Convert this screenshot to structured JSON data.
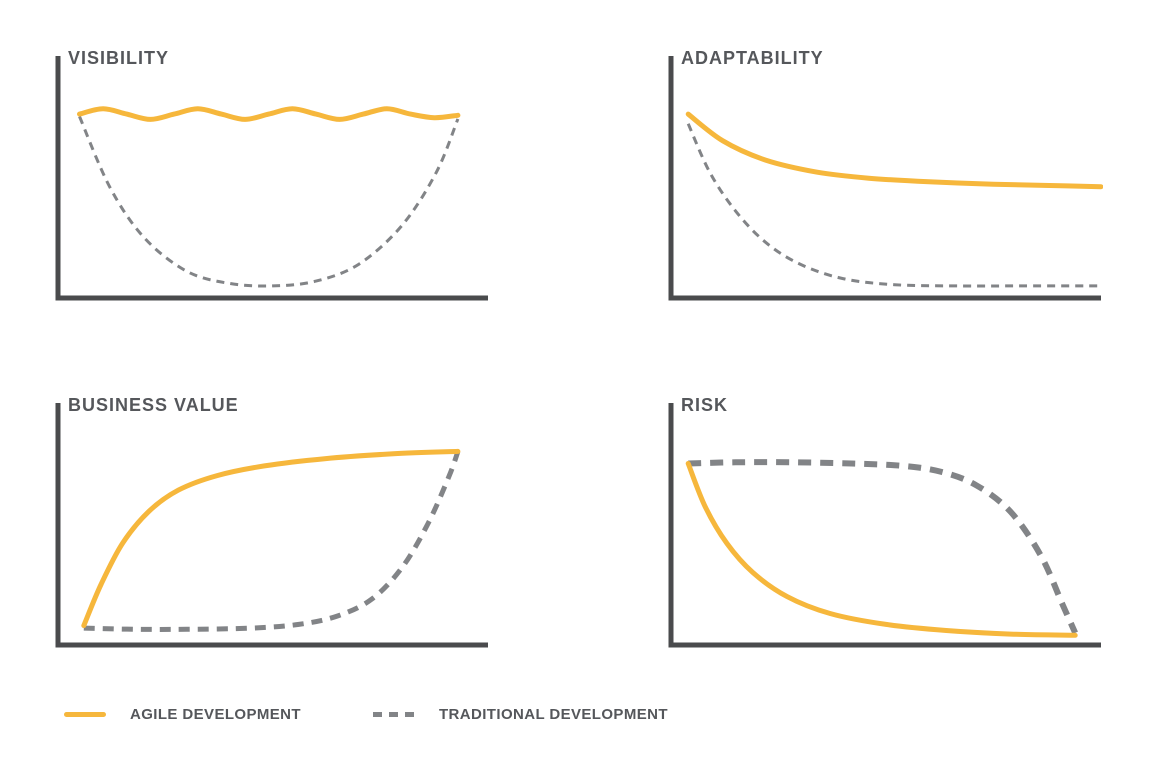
{
  "colors": {
    "agile": "#F6B73C",
    "traditional": "#828487",
    "axis": "#4A4B4D",
    "title_text": "#55575B"
  },
  "legend": {
    "items": [
      {
        "label": "AGILE DEVELOPMENT",
        "line_style": "solid",
        "color": "#F6B73C"
      },
      {
        "label": "TRADITIONAL DEVELOPMENT",
        "line_style": "dashed",
        "color": "#828487"
      }
    ]
  },
  "chart_data": [
    {
      "type": "line",
      "title": "VISIBILITY",
      "xlabel": "",
      "ylabel": "",
      "x_range": [
        0,
        100
      ],
      "y_range": [
        0,
        100
      ],
      "grid": false,
      "legend_position": "bottom",
      "series": [
        {
          "name": "AGILE DEVELOPMENT",
          "style": "solid",
          "color": "#F6B73C",
          "width": 5,
          "x": [
            5,
            10.5,
            16,
            21.5,
            27,
            32.5,
            38,
            43.5,
            49,
            54.5,
            60,
            65.5,
            71,
            76.5,
            82,
            87.5,
            93
          ],
          "y": [
            76,
            78.2,
            76,
            73.8,
            76,
            78.2,
            76,
            73.8,
            76,
            78.2,
            76,
            73.8,
            76,
            78.2,
            76,
            74.5,
            75.5
          ]
        },
        {
          "name": "TRADITIONAL DEVELOPMENT",
          "style": "dashed",
          "color": "#828487",
          "width": 3,
          "dash": [
            8,
            6
          ],
          "x": [
            5,
            12,
            20,
            30,
            40,
            50,
            60,
            70,
            80,
            88,
            93
          ],
          "y": [
            75,
            46,
            25,
            11,
            6,
            5,
            7,
            14,
            30,
            52,
            74
          ]
        }
      ]
    },
    {
      "type": "line",
      "title": "ADAPTABILITY",
      "xlabel": "",
      "ylabel": "",
      "x_range": [
        0,
        100
      ],
      "y_range": [
        0,
        100
      ],
      "grid": false,
      "legend_position": "bottom",
      "series": [
        {
          "name": "AGILE DEVELOPMENT",
          "style": "solid",
          "color": "#F6B73C",
          "width": 5,
          "x": [
            4,
            12,
            22,
            34,
            46,
            60,
            75,
            88,
            100
          ],
          "y": [
            76,
            65,
            57,
            52,
            49.5,
            48,
            47,
            46.5,
            46
          ]
        },
        {
          "name": "TRADITIONAL DEVELOPMENT",
          "style": "dashed",
          "color": "#828487",
          "width": 3,
          "dash": [
            8,
            6
          ],
          "x": [
            4,
            9,
            15,
            22,
            30,
            40,
            52,
            66,
            82,
            100
          ],
          "y": [
            72,
            52,
            36,
            23,
            14,
            8,
            5.5,
            5,
            5,
            5
          ]
        }
      ]
    },
    {
      "type": "line",
      "title": "BUSINESS VALUE",
      "xlabel": "",
      "ylabel": "",
      "x_range": [
        0,
        100
      ],
      "y_range": [
        0,
        100
      ],
      "grid": false,
      "legend_position": "bottom",
      "series": [
        {
          "name": "AGILE DEVELOPMENT",
          "style": "solid",
          "color": "#F6B73C",
          "width": 5,
          "x": [
            6,
            10,
            15,
            21,
            28,
            37,
            48,
            62,
            78,
            93
          ],
          "y": [
            8,
            25,
            42,
            55,
            64,
            70,
            74,
            77,
            79,
            80
          ]
        },
        {
          "name": "TRADITIONAL DEVELOPMENT",
          "style": "dashed",
          "color": "#828487",
          "width": 5,
          "dash": [
            11,
            8
          ],
          "x": [
            6,
            18,
            30,
            45,
            56,
            65,
            73,
            80,
            86,
            91,
            93
          ],
          "y": [
            7,
            6.5,
            6.5,
            7,
            8.5,
            12,
            19,
            32,
            50,
            70,
            80
          ]
        }
      ]
    },
    {
      "type": "line",
      "title": "RISK",
      "xlabel": "",
      "ylabel": "",
      "x_range": [
        0,
        100
      ],
      "y_range": [
        0,
        100
      ],
      "grid": false,
      "legend_position": "bottom",
      "series": [
        {
          "name": "AGILE DEVELOPMENT",
          "style": "solid",
          "color": "#F6B73C",
          "width": 5,
          "x": [
            4,
            8,
            13,
            19,
            27,
            37,
            50,
            64,
            79,
            94
          ],
          "y": [
            75,
            57,
            42,
            30,
            20,
            13,
            8.5,
            6,
            4.5,
            4
          ]
        },
        {
          "name": "TRADITIONAL DEVELOPMENT",
          "style": "dashed",
          "color": "#828487",
          "width": 6,
          "dash": [
            13,
            9
          ],
          "x": [
            4,
            15,
            28,
            42,
            54,
            63,
            71,
            79,
            86,
            91,
            94
          ],
          "y": [
            75,
            75.5,
            75.5,
            75,
            74,
            71.5,
            66,
            55,
            37,
            17,
            5
          ]
        }
      ]
    }
  ]
}
